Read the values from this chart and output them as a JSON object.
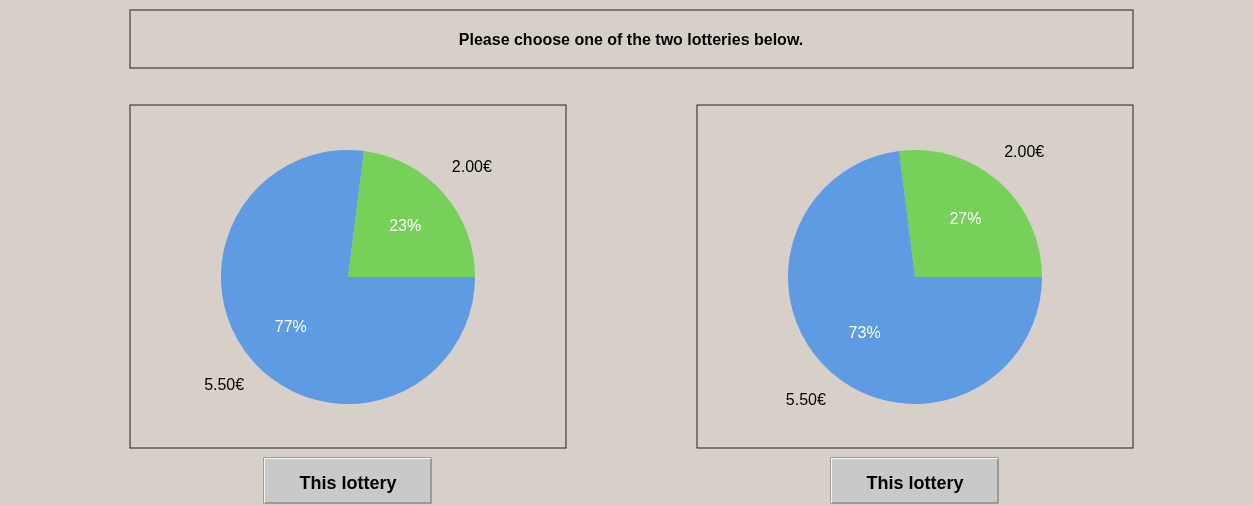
{
  "chart_data": [
    {
      "type": "other",
      "title": "Please choose one of the two lotteries below."
    },
    {
      "type": "pie",
      "categories": [
        "2.00€",
        "5.50€"
      ],
      "values": [
        23,
        77
      ],
      "colors": [
        "#76d05a",
        "#5e9be3"
      ],
      "value_labels": [
        "23%",
        "77%"
      ],
      "annotations": [
        "This lottery"
      ]
    },
    {
      "type": "pie",
      "categories": [
        "2.00€",
        "5.50€"
      ],
      "values": [
        27,
        73
      ],
      "colors": [
        "#76d05a",
        "#5e9be3"
      ],
      "value_labels": [
        "27%",
        "73%"
      ],
      "annotations": [
        "This lottery"
      ]
    }
  ]
}
